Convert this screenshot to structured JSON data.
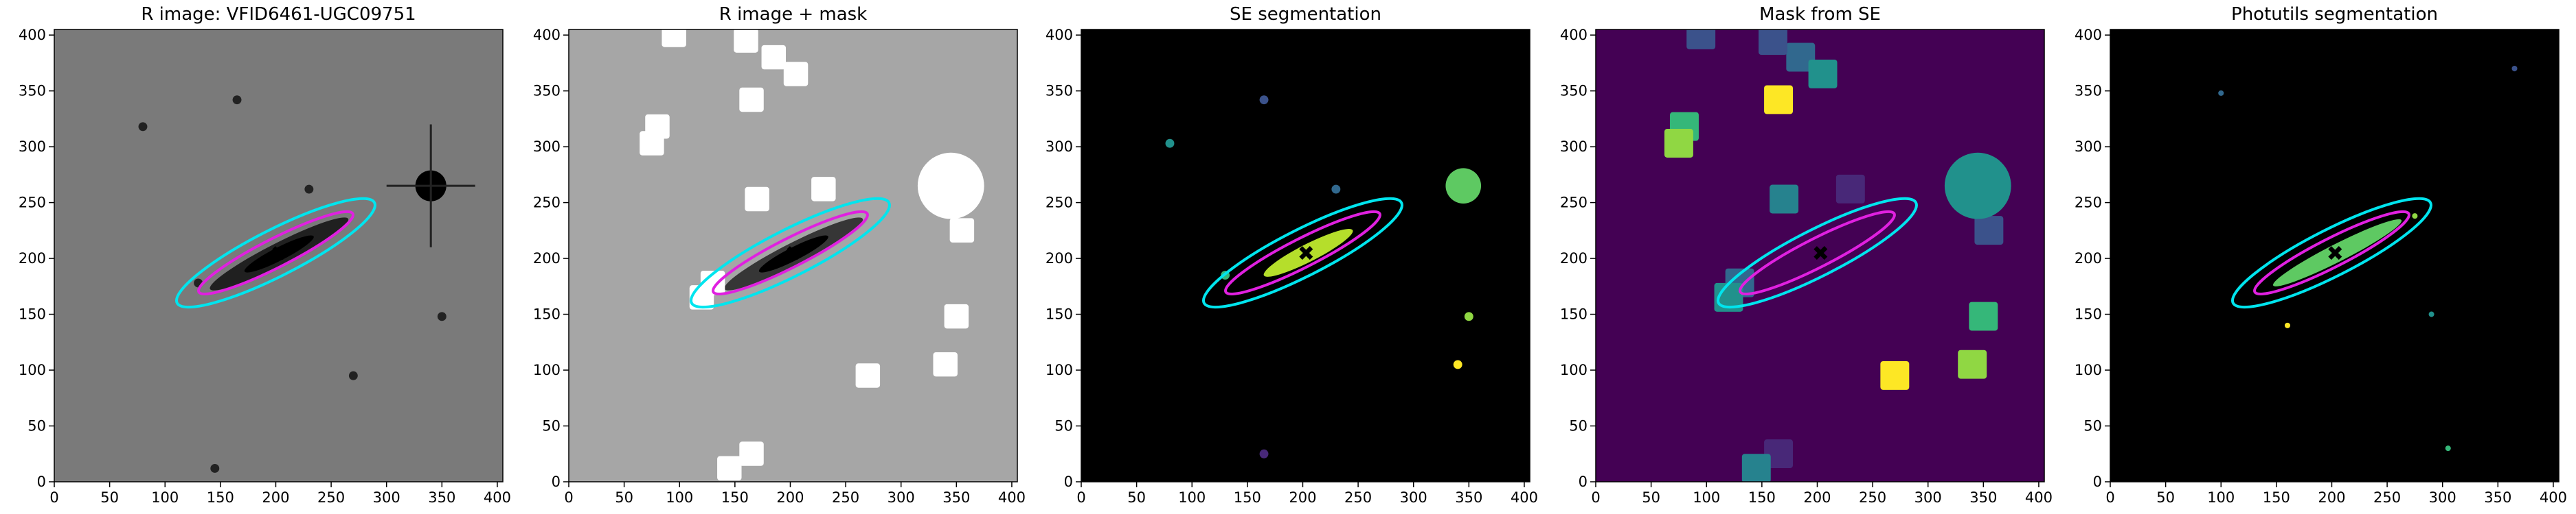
{
  "chart_data": [
    {
      "type": "image",
      "title": "R image: VFID6461-UGC09751",
      "background": "#7a7a7a",
      "xlim": [
        0,
        405
      ],
      "ylim": [
        0,
        405
      ],
      "xticks": [
        0,
        50,
        100,
        150,
        200,
        250,
        300,
        350,
        400
      ],
      "yticks": [
        0,
        50,
        100,
        150,
        200,
        250,
        300,
        350,
        400
      ]
    },
    {
      "type": "image",
      "title": "R image + mask",
      "background": "#a6a6a6",
      "xlim": [
        0,
        405
      ],
      "ylim": [
        0,
        405
      ],
      "xticks": [
        0,
        50,
        100,
        150,
        200,
        250,
        300,
        350,
        400
      ],
      "yticks": [
        0,
        50,
        100,
        150,
        200,
        250,
        300,
        350,
        400
      ]
    },
    {
      "type": "image",
      "title": "SE segmentation",
      "background": "#000000",
      "xlim": [
        0,
        405
      ],
      "ylim": [
        0,
        405
      ],
      "xticks": [
        0,
        50,
        100,
        150,
        200,
        250,
        300,
        350,
        400
      ],
      "yticks": [
        0,
        50,
        100,
        150,
        200,
        250,
        300,
        350,
        400
      ]
    },
    {
      "type": "image",
      "title": "Mask from SE",
      "background": "#440154",
      "xlim": [
        0,
        405
      ],
      "ylim": [
        0,
        405
      ],
      "xticks": [
        0,
        50,
        100,
        150,
        200,
        250,
        300,
        350,
        400
      ],
      "yticks": [
        0,
        50,
        100,
        150,
        200,
        250,
        300,
        350,
        400
      ]
    },
    {
      "type": "image",
      "title": "Photutils segmentation",
      "background": "#000000",
      "xlim": [
        0,
        405
      ],
      "ylim": [
        0,
        405
      ],
      "xticks": [
        0,
        50,
        100,
        150,
        200,
        250,
        300,
        350,
        400
      ],
      "yticks": [
        0,
        50,
        100,
        150,
        200,
        250,
        300,
        350,
        400
      ]
    }
  ]
}
